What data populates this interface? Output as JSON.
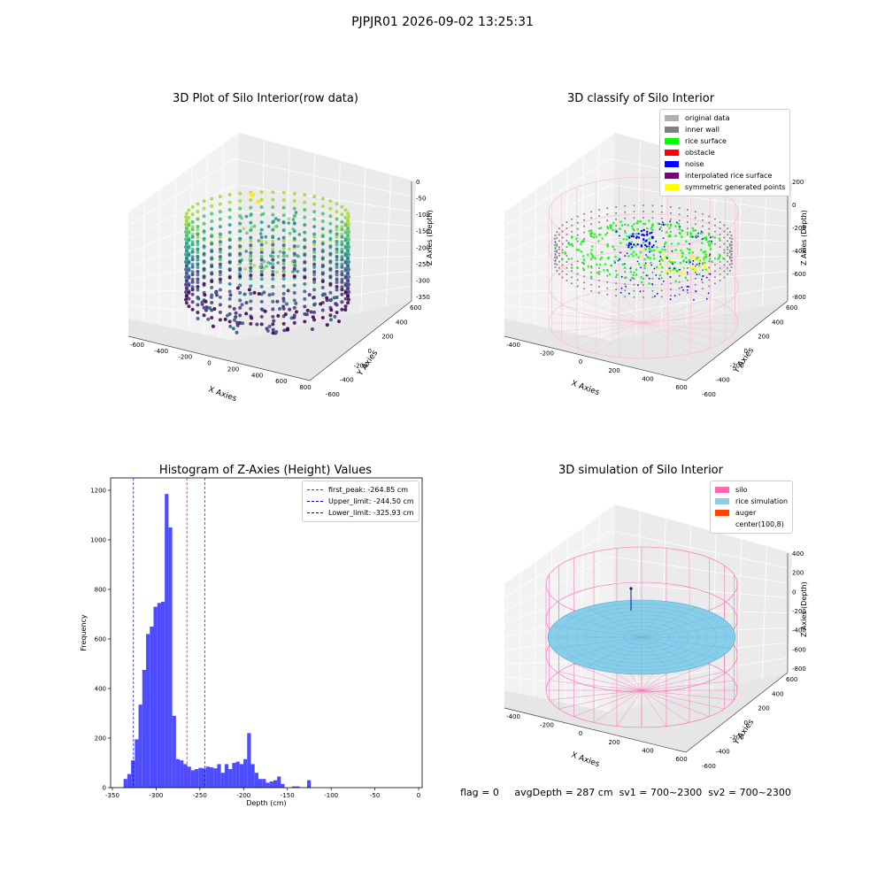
{
  "suptitle": "PJPJR01 2026-09-02 13:25:31",
  "footer": {
    "flag": "flag = 0",
    "avg_depth": "avgDepth = 287 cm",
    "sv1": "sv1 = 700~2300",
    "sv2": "sv2 = 700~2300"
  },
  "chart_data": [
    {
      "type": "scatter",
      "projection": "3d",
      "title": "3D Plot of Silo Interior(row data)",
      "xlabel": "X Axies",
      "ylabel": "Y Axies",
      "zlabel": "Z Axies (Depth)",
      "xticks": [
        "-600",
        "-400",
        "-200",
        "0",
        "200",
        "400",
        "600",
        "800"
      ],
      "yticks": [
        "-600",
        "-400",
        "-200",
        "0",
        "200",
        "400",
        "600"
      ],
      "zticks": [
        "0",
        "-50",
        "-100",
        "-150",
        "-200",
        "-250",
        "-300",
        "-350"
      ],
      "colormap": "viridis",
      "grid": true
    },
    {
      "type": "scatter",
      "projection": "3d",
      "title": "3D classify of Silo Interior",
      "xlabel": "X Axies",
      "ylabel": "Y Axies",
      "zlabel": "Z Axies (Depth)",
      "xticks": [
        "-400",
        "-200",
        "0",
        "200",
        "400",
        "600"
      ],
      "yticks": [
        "-600",
        "-400",
        "-200",
        "0",
        "200",
        "400",
        "600"
      ],
      "zticks": [
        "200",
        "0",
        "-200",
        "-400",
        "-600",
        "-800"
      ],
      "legend_position": "top-right",
      "legend": [
        {
          "label": "original data",
          "color": "#b0b0b0"
        },
        {
          "label": "inner wall",
          "color": "#808080"
        },
        {
          "label": "rice surface",
          "color": "#00ff00"
        },
        {
          "label": "obstacle",
          "color": "#ff0000"
        },
        {
          "label": "noise",
          "color": "#0000ff"
        },
        {
          "label": "interpolated rice surface",
          "color": "#800080"
        },
        {
          "label": "symmetric generated points",
          "color": "#ffff00"
        }
      ],
      "grid": true
    },
    {
      "type": "bar",
      "title": "Histogram of Z-Axies (Height) Values",
      "xlabel": "Depth (cm)",
      "ylabel": "Frequency",
      "xlim": [
        -352,
        4
      ],
      "ylim": [
        0,
        1250
      ],
      "xticks": [
        -350,
        -300,
        -250,
        -200,
        -150,
        -100,
        -50,
        0
      ],
      "yticks": [
        0,
        200,
        400,
        600,
        800,
        1000,
        1200
      ],
      "bar_color": "#4d4dff",
      "bin_edges_start": -337.2,
      "bin_width": 4.28,
      "values": [
        35,
        55,
        110,
        195,
        335,
        475,
        620,
        650,
        730,
        745,
        750,
        1185,
        1050,
        290,
        115,
        110,
        95,
        85,
        70,
        75,
        80,
        78,
        85,
        82,
        78,
        95,
        60,
        95,
        75,
        100,
        105,
        95,
        115,
        220,
        95,
        60,
        35,
        35,
        20,
        25,
        30,
        45,
        15,
        0,
        0,
        5,
        5,
        0,
        0,
        30
      ],
      "vlines": [
        {
          "label": "first_peak: -264.85 cm",
          "x": -264.85,
          "color": "#ff0000"
        },
        {
          "label": "Upper_limit: -244.50 cm",
          "x": -244.5,
          "color": "#0000ff"
        },
        {
          "label": "Lower_limit: -325.93 cm",
          "x": -325.93,
          "color": "#0000ff"
        }
      ],
      "legend_position": "top-right",
      "grid": false
    },
    {
      "type": "surface",
      "projection": "3d",
      "title": "3D simulation of Silo Interior",
      "xlabel": "X Axies",
      "ylabel": "Y Axies",
      "zlabel": "Z Axies (Depth)",
      "xticks": [
        "-400",
        "-200",
        "0",
        "200",
        "400",
        "600"
      ],
      "yticks": [
        "-600",
        "-400",
        "-200",
        "0",
        "200",
        "400",
        "600"
      ],
      "zticks": [
        "400",
        "200",
        "0",
        "-200",
        "-400",
        "-600",
        "-800"
      ],
      "legend_position": "top-right",
      "legend": [
        {
          "label": "silo",
          "color": "#ff69b4"
        },
        {
          "label": "rice simulation",
          "color": "#87ceeb"
        },
        {
          "label": "auger",
          "color": "#ff4500"
        },
        {
          "label": "center(100,8)",
          "color": ""
        }
      ],
      "grid": true
    }
  ]
}
